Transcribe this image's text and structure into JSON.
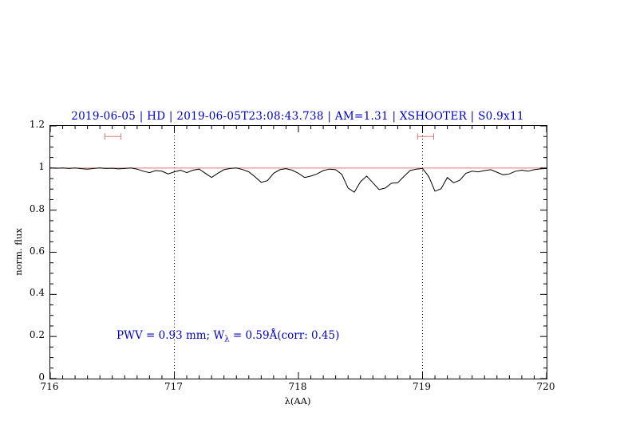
{
  "title": "2019-06-05 | HD | 2019-06-05T23:08:43.738 | AM=1.31 | XSHOOTER | S0.9x11",
  "annotation": {
    "prefix": "PWV = 0.93 mm; W",
    "sub": "λ",
    "suffix": " = 0.59Å(corr: 0.45)"
  },
  "colors": {
    "title": "#0000cc",
    "annotation": "#0000cc",
    "spectrum": "#000000",
    "continuum": "#e07878",
    "marker": "#e07878",
    "dotted_line": "#000000"
  },
  "chart_data": {
    "type": "line",
    "title": "2019-06-05 | HD | 2019-06-05T23:08:43.738 | AM=1.31 | XSHOOTER | S0.9x11",
    "xlabel": "λ(AA)",
    "ylabel": "norm. flux",
    "xlim": [
      716,
      720
    ],
    "ylim": [
      0,
      1.2
    ],
    "xticks": [
      716,
      717,
      718,
      719,
      720
    ],
    "xtick_labels": [
      "716",
      "717",
      "718",
      "719",
      "720"
    ],
    "yticks": [
      0,
      0.2,
      0.4,
      0.6,
      0.8,
      1,
      1.2
    ],
    "ytick_labels": [
      "0",
      "0.2",
      "0.4",
      "0.6",
      "0.8",
      "1",
      "1.2"
    ],
    "minor_x_step": 0.1,
    "minor_y_step": 0.05,
    "grid": false,
    "vlines": [
      717,
      719
    ],
    "continuum_level": 1.0,
    "markers": [
      {
        "x1": 716.44,
        "x2": 716.57,
        "y": 1.15
      },
      {
        "x1": 718.96,
        "x2": 719.09,
        "y": 1.15
      }
    ],
    "series": [
      {
        "name": "telluric spectrum",
        "x": [
          716,
          716.05,
          716.1,
          716.15,
          716.2,
          716.25,
          716.3,
          716.35,
          716.4,
          716.45,
          716.5,
          716.55,
          716.6,
          716.65,
          716.7,
          716.75,
          716.8,
          716.85,
          716.9,
          716.95,
          717,
          717.05,
          717.1,
          717.15,
          717.2,
          717.25,
          717.3,
          717.35,
          717.4,
          717.45,
          717.5,
          717.55,
          717.6,
          717.65,
          717.7,
          717.75,
          717.8,
          717.85,
          717.9,
          717.95,
          718,
          718.05,
          718.1,
          718.15,
          718.2,
          718.25,
          718.3,
          718.35,
          718.4,
          718.45,
          718.5,
          718.55,
          718.6,
          718.65,
          718.7,
          718.75,
          718.8,
          718.85,
          718.9,
          718.95,
          719,
          719.05,
          719.1,
          719.15,
          719.2,
          719.25,
          719.3,
          719.35,
          719.4,
          719.45,
          719.5,
          719.55,
          719.6,
          719.65,
          719.7,
          719.75,
          719.8,
          719.85,
          719.9,
          719.95,
          720
        ],
        "y": [
          1.0,
          0.999,
          1.0,
          0.998,
          1.0,
          0.997,
          0.995,
          0.998,
          1.0,
          0.998,
          0.999,
          0.996,
          0.998,
          1.0,
          0.995,
          0.985,
          0.978,
          0.988,
          0.985,
          0.972,
          0.982,
          0.99,
          0.978,
          0.99,
          0.995,
          0.975,
          0.955,
          0.975,
          0.992,
          0.998,
          1.0,
          0.993,
          0.982,
          0.958,
          0.932,
          0.94,
          0.975,
          0.992,
          0.997,
          0.99,
          0.975,
          0.955,
          0.962,
          0.972,
          0.988,
          0.995,
          0.992,
          0.97,
          0.905,
          0.885,
          0.935,
          0.962,
          0.93,
          0.898,
          0.905,
          0.928,
          0.93,
          0.96,
          0.988,
          0.995,
          0.998,
          0.96,
          0.89,
          0.902,
          0.955,
          0.93,
          0.942,
          0.975,
          0.985,
          0.982,
          0.988,
          0.992,
          0.98,
          0.968,
          0.972,
          0.985,
          0.99,
          0.985,
          0.992,
          0.996,
          0.998
        ]
      }
    ]
  }
}
